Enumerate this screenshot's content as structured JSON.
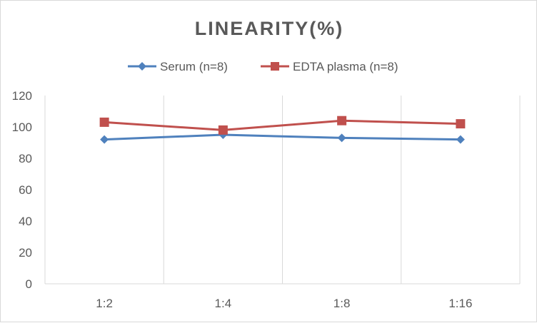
{
  "chart_data": {
    "type": "line",
    "title": "LINEARITY(%)",
    "xlabel": "",
    "ylabel": "",
    "categories": [
      "1:2",
      "1:4",
      "1:8",
      "1:16"
    ],
    "ylim": [
      0,
      120
    ],
    "yticks": [
      0,
      20,
      40,
      60,
      80,
      100,
      120
    ],
    "grid": "vertical",
    "legend_position": "top",
    "series": [
      {
        "name": "Serum (n=8)",
        "values": [
          92,
          95,
          93,
          92
        ],
        "color": "#4f81bd",
        "marker": "diamond"
      },
      {
        "name": "EDTA plasma (n=8)",
        "values": [
          103,
          98,
          104,
          102
        ],
        "color": "#c0504d",
        "marker": "square"
      }
    ]
  }
}
